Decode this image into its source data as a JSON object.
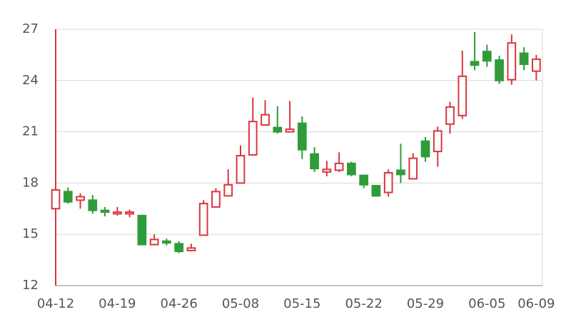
{
  "chart_data": {
    "type": "candlestick",
    "categories": [
      "04-12",
      null,
      null,
      null,
      null,
      "04-19",
      null,
      null,
      null,
      null,
      "04-26",
      null,
      null,
      null,
      null,
      "05-08",
      null,
      null,
      null,
      null,
      "05-15",
      null,
      null,
      null,
      null,
      "05-22",
      null,
      null,
      null,
      null,
      "05-29",
      null,
      null,
      null,
      null,
      "06-05",
      null,
      null,
      null,
      "06-09"
    ],
    "open": [
      16.5,
      17.5,
      17.0,
      17.0,
      16.4,
      16.2,
      16.2,
      16.1,
      14.4,
      14.6,
      14.45,
      14.05,
      14.95,
      16.6,
      17.25,
      18.0,
      19.65,
      21.4,
      21.25,
      21.0,
      21.5,
      19.7,
      18.65,
      18.75,
      19.15,
      18.45,
      17.85,
      17.45,
      18.75,
      18.25,
      20.45,
      19.85,
      21.45,
      21.95,
      25.1,
      25.7,
      25.2,
      24.05,
      25.6,
      24.55
    ],
    "high": [
      27.0,
      17.75,
      17.4,
      17.3,
      16.6,
      16.6,
      16.45,
      16.1,
      15.0,
      14.75,
      14.6,
      14.45,
      17.0,
      17.7,
      18.8,
      20.2,
      23.0,
      22.85,
      22.5,
      22.8,
      21.9,
      20.1,
      19.3,
      19.8,
      19.25,
      18.5,
      17.85,
      18.8,
      20.3,
      19.75,
      20.7,
      21.3,
      22.75,
      25.75,
      26.85,
      26.1,
      25.45,
      26.7,
      25.95,
      25.5
    ],
    "low": [
      12.0,
      16.8,
      16.5,
      16.2,
      16.05,
      16.1,
      16.0,
      14.4,
      14.4,
      14.35,
      13.9,
      14.0,
      14.95,
      16.6,
      17.25,
      18.0,
      19.65,
      21.4,
      20.9,
      21.0,
      19.4,
      18.65,
      18.4,
      18.65,
      18.4,
      17.7,
      17.25,
      17.2,
      18.0,
      18.25,
      19.25,
      18.95,
      20.9,
      21.75,
      24.6,
      24.8,
      23.8,
      23.75,
      24.6,
      24.0
    ],
    "close": [
      17.6,
      16.9,
      17.2,
      16.4,
      16.3,
      16.3,
      16.3,
      14.4,
      14.7,
      14.5,
      14.0,
      14.2,
      16.8,
      17.5,
      17.9,
      19.6,
      21.6,
      22.0,
      21.0,
      21.15,
      19.95,
      18.85,
      18.8,
      19.15,
      18.5,
      17.9,
      17.25,
      18.6,
      18.5,
      19.45,
      19.55,
      21.05,
      22.45,
      24.25,
      24.9,
      25.15,
      24.0,
      26.2,
      24.95,
      25.25
    ],
    "up_color": "#d9363e",
    "down_color": "#2e9c3a",
    "ylim": [
      12,
      27
    ],
    "yticks": [
      12,
      15,
      18,
      21,
      24,
      27
    ],
    "grid": true
  }
}
